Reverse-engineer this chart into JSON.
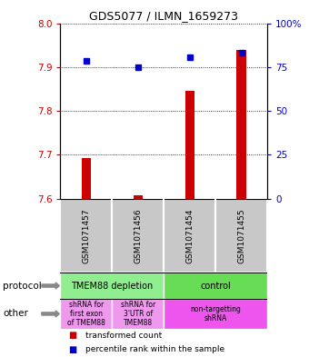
{
  "title": "GDS5077 / ILMN_1659273",
  "samples": [
    "GSM1071457",
    "GSM1071456",
    "GSM1071454",
    "GSM1071455"
  ],
  "red_values": [
    7.693,
    7.607,
    7.845,
    7.94
  ],
  "blue_values": [
    7.915,
    7.9,
    7.922,
    7.932
  ],
  "ylim_left": [
    7.6,
    8.0
  ],
  "ylim_right": [
    0,
    100
  ],
  "yticks_left": [
    7.6,
    7.7,
    7.8,
    7.9,
    8.0
  ],
  "yticks_right": [
    0,
    25,
    50,
    75,
    100
  ],
  "ytick_labels_right": [
    "0",
    "25",
    "50",
    "75",
    "100%"
  ],
  "row_label_protocol": "protocol",
  "row_label_other": "other",
  "legend_red": "transformed count",
  "legend_blue": "percentile rank within the sample",
  "red_color": "#CC0000",
  "blue_color": "#0000CC",
  "bg_color": "#FFFFFF",
  "sample_bg": "#C8C8C8",
  "proto_spans": [
    [
      0,
      2,
      "TMEM88 depletion",
      "#90EE90"
    ],
    [
      2,
      4,
      "control",
      "#66DD55"
    ]
  ],
  "other_spans": [
    [
      0,
      1,
      "shRNA for\nfirst exon\nof TMEM88",
      "#EE99EE"
    ],
    [
      1,
      2,
      "shRNA for\n3'UTR of\nTMEM88",
      "#EE99EE"
    ],
    [
      2,
      4,
      "non-targetting\nshRNA",
      "#EE55EE"
    ]
  ]
}
